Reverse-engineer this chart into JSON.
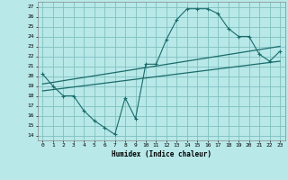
{
  "title": "",
  "xlabel": "Humidex (Indice chaleur)",
  "ylabel": "",
  "bg_color": "#b8e8e8",
  "grid_color": "#80c0c0",
  "line_color": "#1a6b6b",
  "xlim": [
    -0.5,
    23.5
  ],
  "ylim": [
    13.5,
    27.5
  ],
  "xticks": [
    0,
    1,
    2,
    3,
    4,
    5,
    6,
    7,
    8,
    9,
    10,
    11,
    12,
    13,
    14,
    15,
    16,
    17,
    18,
    19,
    20,
    21,
    22,
    23
  ],
  "yticks": [
    14,
    15,
    16,
    17,
    18,
    19,
    20,
    21,
    22,
    23,
    24,
    25,
    26,
    27
  ],
  "line1_x": [
    0,
    1,
    2,
    3,
    4,
    5,
    6,
    7,
    8,
    9,
    10,
    11,
    12,
    13,
    14,
    15,
    16,
    17,
    18,
    19,
    20,
    21,
    22,
    23
  ],
  "line1_y": [
    20.2,
    19.0,
    18.0,
    18.0,
    16.5,
    15.5,
    14.8,
    14.1,
    17.8,
    15.7,
    21.2,
    21.2,
    23.7,
    25.7,
    26.8,
    26.8,
    26.8,
    26.3,
    24.8,
    24.0,
    24.0,
    22.2,
    21.5,
    22.5
  ],
  "line2_x": [
    0,
    23
  ],
  "line2_y": [
    19.2,
    23.0
  ],
  "line3_x": [
    0,
    23
  ],
  "line3_y": [
    18.5,
    21.5
  ]
}
